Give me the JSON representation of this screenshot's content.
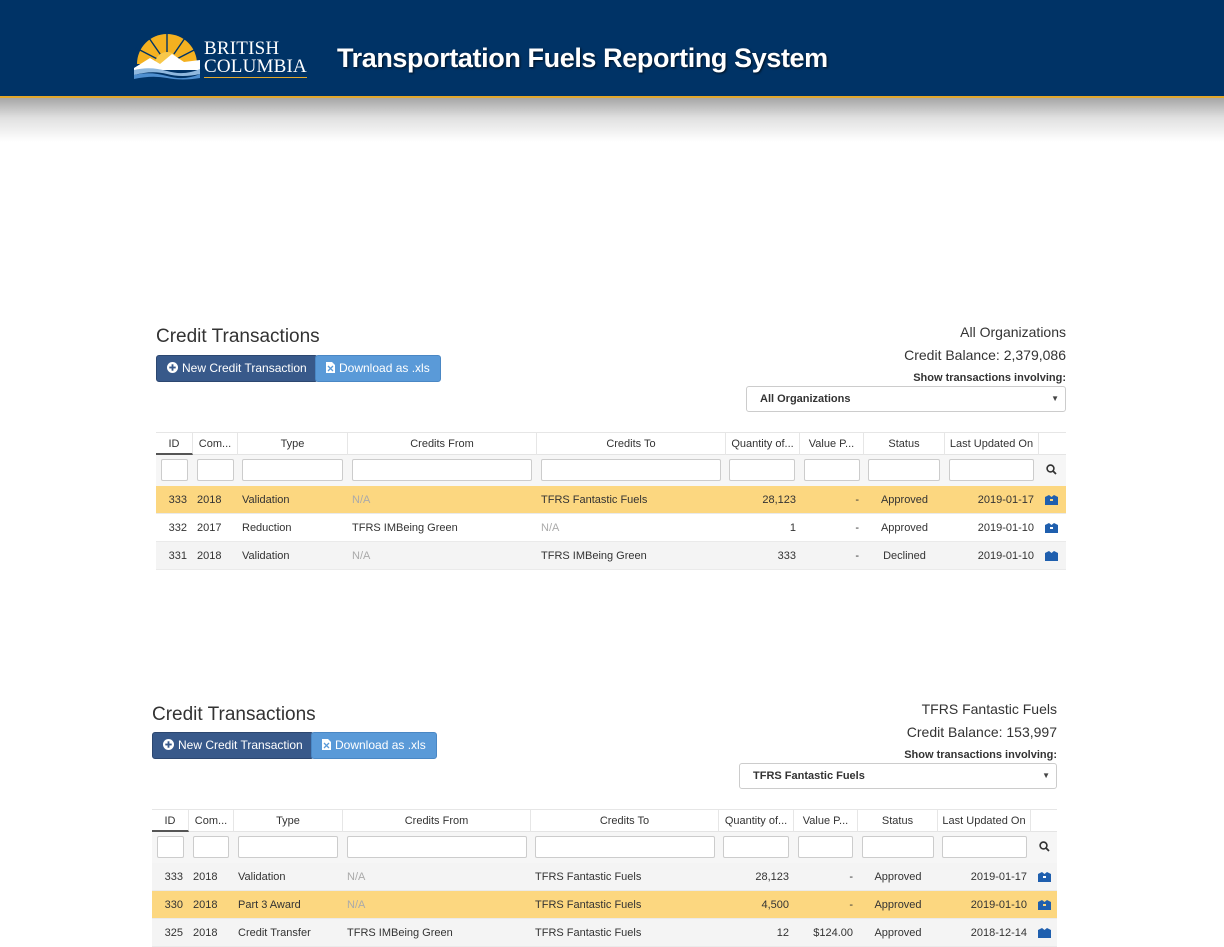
{
  "header": {
    "logo_line1": "BRITISH",
    "logo_line2": "COLUMBIA",
    "app_title": "Transportation Fuels Reporting System"
  },
  "panels": [
    {
      "title": "Credit Transactions",
      "new_button": "New Credit Transaction",
      "download_button": "Download as .xls",
      "organization": "All Organizations",
      "credit_balance": "Credit Balance: 2,379,086",
      "involving_label": "Show transactions involving:",
      "selected_org": "All Organizations",
      "columns": [
        "ID",
        "Com...",
        "Type",
        "Credits From",
        "Credits To",
        "Quantity of...",
        "Value P...",
        "Status",
        "Last Updated On"
      ],
      "rows": [
        {
          "id": "333",
          "year": "2018",
          "type": "Validation",
          "from": "N/A",
          "to": "TFRS Fantastic Fuels",
          "qty": "28,123",
          "value": "-",
          "status": "Approved",
          "updated": "2019-01-17"
        },
        {
          "id": "332",
          "year": "2017",
          "type": "Reduction",
          "from": "TFRS IMBeing Green",
          "to": "N/A",
          "qty": "1",
          "value": "-",
          "status": "Approved",
          "updated": "2019-01-10"
        },
        {
          "id": "331",
          "year": "2018",
          "type": "Validation",
          "from": "N/A",
          "to": "TFRS IMBeing Green",
          "qty": "333",
          "value": "-",
          "status": "Declined",
          "updated": "2019-01-10"
        }
      ]
    },
    {
      "title": "Credit Transactions",
      "new_button": "New Credit Transaction",
      "download_button": "Download as .xls",
      "organization": "TFRS Fantastic Fuels",
      "credit_balance": "Credit Balance: 153,997",
      "involving_label": "Show transactions involving:",
      "selected_org": "TFRS Fantastic Fuels",
      "columns": [
        "ID",
        "Com...",
        "Type",
        "Credits From",
        "Credits To",
        "Quantity of...",
        "Value P...",
        "Status",
        "Last Updated On"
      ],
      "rows": [
        {
          "id": "333",
          "year": "2018",
          "type": "Validation",
          "from": "N/A",
          "to": "TFRS Fantastic Fuels",
          "qty": "28,123",
          "value": "-",
          "status": "Approved",
          "updated": "2019-01-17"
        },
        {
          "id": "330",
          "year": "2018",
          "type": "Part 3 Award",
          "from": "N/A",
          "to": "TFRS Fantastic Fuels",
          "qty": "4,500",
          "value": "-",
          "status": "Approved",
          "updated": "2019-01-10"
        },
        {
          "id": "325",
          "year": "2018",
          "type": "Credit Transfer",
          "from": "TFRS IMBeing Green",
          "to": "TFRS Fantastic Fuels",
          "qty": "12",
          "value": "$124.00",
          "status": "Approved",
          "updated": "2018-12-14"
        }
      ]
    }
  ],
  "colors": {
    "header_bg": "#003366",
    "header_accent": "#e3a82b",
    "primary_button": "#38598a",
    "info_button": "#5a9ad8",
    "row_highlight": "#fcd780"
  }
}
